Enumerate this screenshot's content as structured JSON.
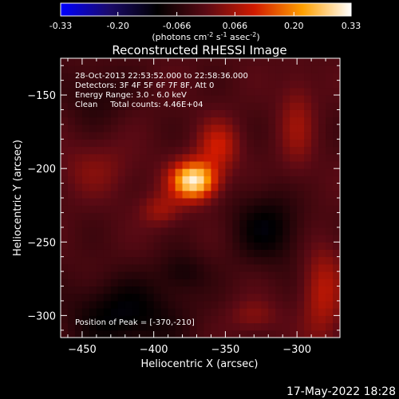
{
  "colorbar": {
    "ticks": [
      "-0.33",
      "-0.20",
      "-0.066",
      "0.066",
      "0.20",
      "0.33"
    ],
    "unit_label": "(photons cm",
    "unit_sup1": "-2",
    "unit_mid1": " s",
    "unit_sup2": "-1",
    "unit_mid2": " asec",
    "unit_sup3": "-2",
    "unit_end": ")",
    "colors": [
      "#0000ff",
      "#1a0a6a",
      "#000000",
      "#5a0a14",
      "#d01a00",
      "#ffa000",
      "#ffffff"
    ]
  },
  "chart_data": {
    "type": "heatmap",
    "title": "Reconstructed RHESSI Image",
    "xlabel": "Heliocentric X (arcsec)",
    "ylabel": "Heliocentric Y (arcsec)",
    "xlim": [
      -465,
      -270
    ],
    "ylim": [
      -315,
      -125
    ],
    "xticks": [
      -450,
      -400,
      -350,
      -300
    ],
    "yticks": [
      -150,
      -200,
      -250,
      -300
    ],
    "xtick_labels": [
      "−450",
      "−400",
      "−350",
      "−300"
    ],
    "ytick_labels": [
      "−150",
      "−200",
      "−250",
      "−300"
    ],
    "colorscale_range": [
      -0.33,
      0.33
    ],
    "peak": [
      -370,
      -210
    ],
    "sources": [
      {
        "x": -372,
        "y": -208,
        "amp": 0.33,
        "sx": 11,
        "sy": 9
      },
      {
        "x": -355,
        "y": -185,
        "amp": 0.12,
        "sx": 10,
        "sy": 12
      },
      {
        "x": -395,
        "y": -228,
        "amp": 0.08,
        "sx": 10,
        "sy": 8
      },
      {
        "x": -300,
        "y": -170,
        "amp": 0.07,
        "sx": 9,
        "sy": 25
      },
      {
        "x": -282,
        "y": -285,
        "amp": 0.1,
        "sx": 10,
        "sy": 25
      },
      {
        "x": -440,
        "y": -200,
        "amp": 0.05,
        "sx": 20,
        "sy": 14
      },
      {
        "x": -330,
        "y": -300,
        "amp": 0.06,
        "sx": 12,
        "sy": 8
      },
      {
        "x": -420,
        "y": -300,
        "amp": -0.1,
        "sx": 28,
        "sy": 18
      },
      {
        "x": -320,
        "y": -240,
        "amp": -0.09,
        "sx": 18,
        "sy": 18
      },
      {
        "x": -440,
        "y": -150,
        "amp": -0.05,
        "sx": 16,
        "sy": 14
      },
      {
        "x": -380,
        "y": -270,
        "amp": -0.06,
        "sx": 12,
        "sy": 10
      }
    ],
    "annotations": {
      "time": "28-Oct-2013 22:53:52.000 to 22:58:36.000",
      "detectors": "Detectors: 3F 4F 5F 6F 7F 8F, Att 0",
      "energy": "Energy Range: 3.0 - 6.0 keV",
      "clean": "Clean     Total counts: 4.46E+04",
      "peak_text": "Position of Peak = [-370,-210]"
    }
  },
  "footer": {
    "date": "17-May-2022 18:28"
  }
}
